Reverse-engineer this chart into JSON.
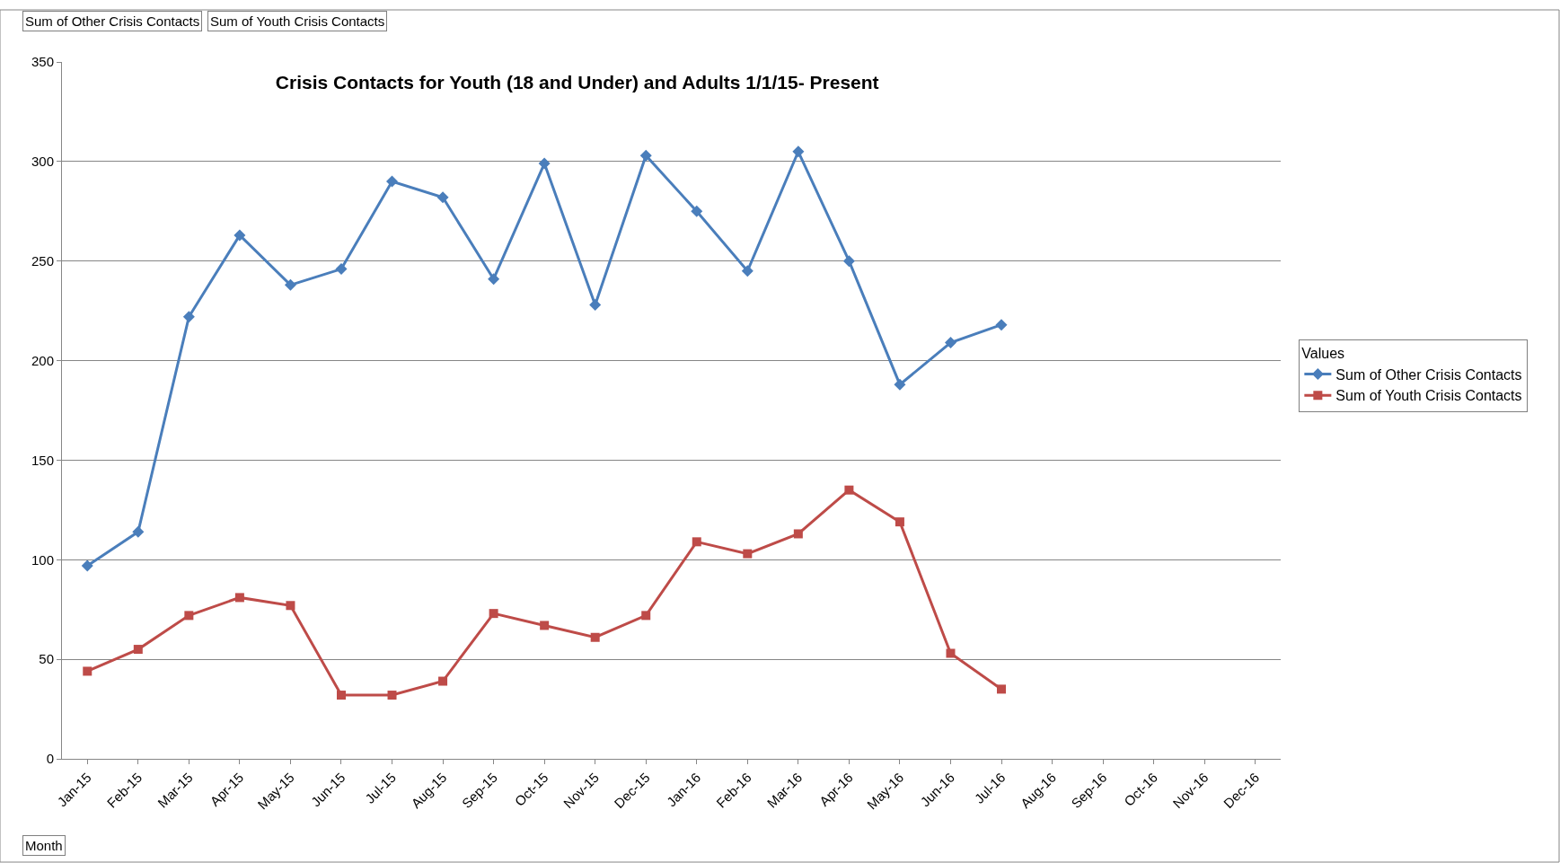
{
  "chart_data": {
    "type": "line",
    "title": "Crisis Contacts for Youth (18 and Under) and Adults 1/1/15- Present",
    "categories": [
      "Jan-15",
      "Feb-15",
      "Mar-15",
      "Apr-15",
      "May-15",
      "Jun-15",
      "Jul-15",
      "Aug-15",
      "Sep-15",
      "Oct-15",
      "Nov-15",
      "Dec-15",
      "Jan-16",
      "Feb-16",
      "Mar-16",
      "Apr-16",
      "May-16",
      "Jun-16",
      "Jul-16",
      "Aug-16",
      "Sep-16",
      "Oct-16",
      "Nov-16",
      "Dec-16"
    ],
    "series": [
      {
        "name": "Sum of Other Crisis Contacts",
        "color": "#4a7ebb",
        "marker": "diamond",
        "values": [
          97,
          114,
          222,
          263,
          238,
          246,
          290,
          282,
          241,
          299,
          228,
          303,
          275,
          245,
          305,
          250,
          188,
          209,
          218,
          null,
          null,
          null,
          null,
          null
        ]
      },
      {
        "name": "Sum of Youth Crisis Contacts",
        "color": "#be4b48",
        "marker": "square",
        "values": [
          44,
          55,
          72,
          81,
          77,
          32,
          32,
          39,
          73,
          67,
          61,
          72,
          109,
          103,
          113,
          135,
          119,
          53,
          35,
          null,
          null,
          null,
          null,
          null
        ]
      }
    ],
    "ylim": [
      0,
      350
    ],
    "yticks": [
      0,
      50,
      100,
      150,
      200,
      250,
      300,
      350
    ],
    "grid": "y",
    "legend": "right",
    "legend_title": "Values",
    "line_style": "solid",
    "annotations": [
      "Sum of Other Crisis Contacts",
      "Sum of Youth Crisis Contacts",
      "Month"
    ]
  }
}
